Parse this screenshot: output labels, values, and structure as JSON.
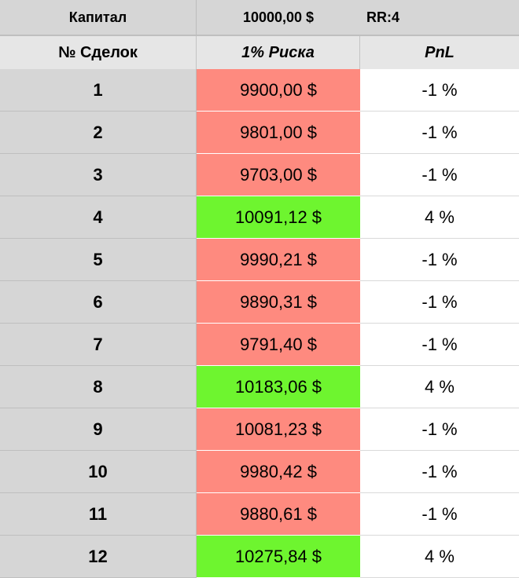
{
  "header": {
    "capital_label": "Капитал",
    "capital_value": "10000,00 $",
    "rr_label": "RR:4"
  },
  "columns": {
    "trades": "№ Сделок",
    "risk": "1% Риска",
    "pnl": "PnL"
  },
  "colors": {
    "loss": "#fe8a7f",
    "win": "#6ef52f",
    "label_col": "#d6d6d6"
  },
  "rows": [
    {
      "n": "1",
      "balance": "9900,00 $",
      "pnl": "-1 %",
      "result": "loss"
    },
    {
      "n": "2",
      "balance": "9801,00 $",
      "pnl": "-1 %",
      "result": "loss"
    },
    {
      "n": "3",
      "balance": "9703,00 $",
      "pnl": "-1 %",
      "result": "loss"
    },
    {
      "n": "4",
      "balance": "10091,12 $",
      "pnl": "4 %",
      "result": "win"
    },
    {
      "n": "5",
      "balance": "9990,21 $",
      "pnl": "-1 %",
      "result": "loss"
    },
    {
      "n": "6",
      "balance": "9890,31 $",
      "pnl": "-1 %",
      "result": "loss"
    },
    {
      "n": "7",
      "balance": "9791,40 $",
      "pnl": "-1 %",
      "result": "loss"
    },
    {
      "n": "8",
      "balance": "10183,06 $",
      "pnl": "4 %",
      "result": "win"
    },
    {
      "n": "9",
      "balance": "10081,23 $",
      "pnl": "-1 %",
      "result": "loss"
    },
    {
      "n": "10",
      "balance": "9980,42 $",
      "pnl": "-1 %",
      "result": "loss"
    },
    {
      "n": "11",
      "balance": "9880,61 $",
      "pnl": "-1 %",
      "result": "loss"
    },
    {
      "n": "12",
      "balance": "10275,84 $",
      "pnl": "4 %",
      "result": "win"
    }
  ]
}
